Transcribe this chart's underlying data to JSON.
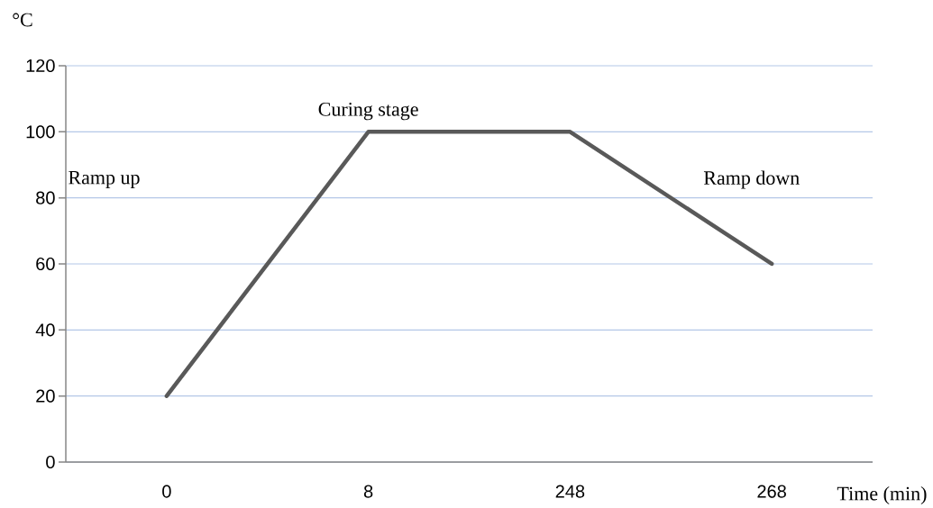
{
  "chart_data": {
    "type": "line",
    "ylabel": "°C",
    "xlabel": "Time (min)",
    "categories": [
      "0",
      "8",
      "248",
      "268"
    ],
    "values": [
      20,
      100,
      100,
      60
    ],
    "color": "#595959",
    "ylim": [
      0,
      120
    ],
    "yticks": [
      0,
      20,
      40,
      60,
      80,
      100,
      120
    ],
    "grid": "y",
    "line_style": "solid",
    "marker": "none",
    "annotations": [
      "Ramp up",
      "Curing stage",
      "Ramp down"
    ]
  }
}
